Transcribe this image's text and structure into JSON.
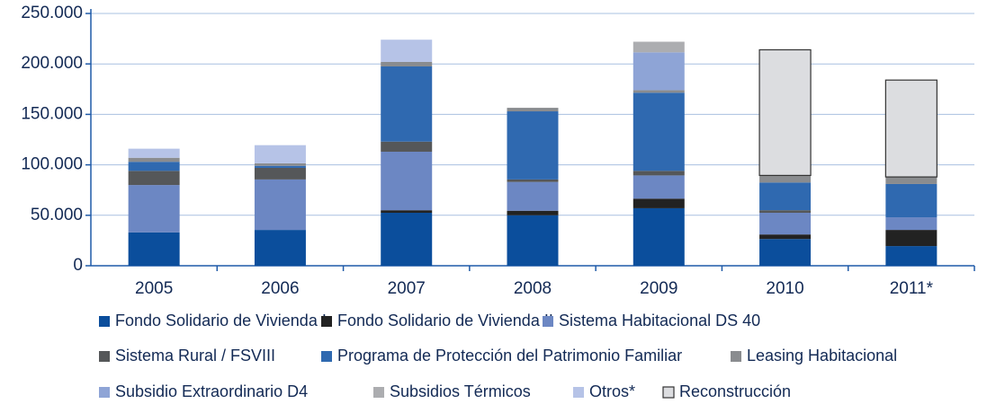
{
  "chart_data": {
    "type": "stacked_bar",
    "categories": [
      "2005",
      "2006",
      "2007",
      "2008",
      "2009",
      "2010",
      "2011*"
    ],
    "series": [
      {
        "name": "Fondo Solidario de Vivienda I",
        "color": "#0b4e9c",
        "values": [
          33000,
          35500,
          52500,
          50000,
          57000,
          26500,
          19500
        ]
      },
      {
        "name": "Fondo Solidario de Vivienda II",
        "color": "#222222",
        "values": [
          0,
          0,
          2500,
          4500,
          9500,
          4500,
          16000
        ]
      },
      {
        "name": "Sistema Habitacional DS 40",
        "color": "#6c87c3",
        "values": [
          47000,
          50000,
          58000,
          28500,
          23000,
          21500,
          12500
        ]
      },
      {
        "name": "Sistema Rural / FSVIII",
        "color": "#555759",
        "values": [
          14000,
          11500,
          10000,
          2500,
          4500,
          2500,
          0
        ]
      },
      {
        "name": "Programa de Protección del Patrimonio Familiar",
        "color": "#2f69b0",
        "values": [
          9000,
          2000,
          74500,
          67500,
          77500,
          27500,
          33000
        ]
      },
      {
        "name": "Leasing Habitacional",
        "color": "#8a8c8f",
        "values": [
          4000,
          2500,
          4500,
          3500,
          2500,
          7000,
          7000
        ]
      },
      {
        "name": "Subsidio Extraordinario D4",
        "color": "#8ea4d6",
        "values": [
          0,
          0,
          0,
          0,
          37500,
          0,
          0
        ]
      },
      {
        "name": "Subsidios Térmicos",
        "color": "#acadb0",
        "values": [
          0,
          0,
          0,
          0,
          10500,
          0,
          0
        ]
      },
      {
        "name": "Otros*",
        "color": "#b6c3e7",
        "values": [
          9000,
          18000,
          22000,
          0,
          0,
          0,
          0
        ]
      },
      {
        "name": "Reconstrucción",
        "color": "#dcdde0",
        "values": [
          0,
          0,
          0,
          0,
          0,
          124500,
          96000
        ]
      }
    ],
    "ylim": [
      0,
      250000
    ],
    "yticks": [
      0,
      {
        "value": 50000,
        "label": "50.000"
      },
      {
        "value": 100000,
        "label": "100.000"
      },
      {
        "value": 150000,
        "label": "150.000"
      },
      {
        "value": 200000,
        "label": "200.000"
      },
      {
        "value": 250000,
        "label": "250.000"
      }
    ],
    "grid": true
  }
}
